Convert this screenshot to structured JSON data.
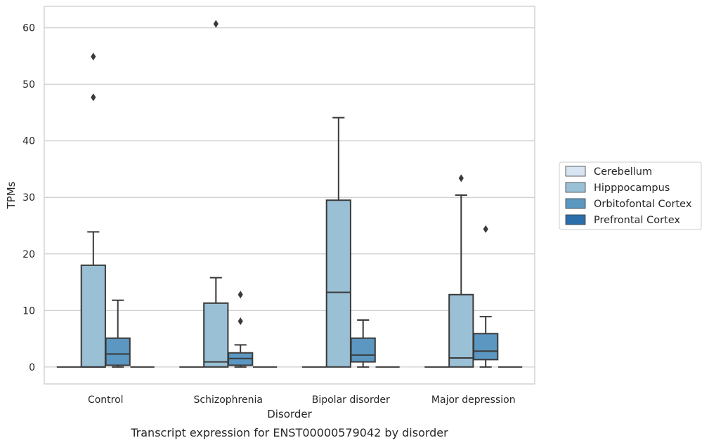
{
  "chart_data": {
    "type": "box",
    "xlabel": "Disorder",
    "ylabel": "TPMs",
    "caption": "Transcript expression for ENST00000579042 by disorder",
    "ylim": [
      -3,
      63.8
    ],
    "yticks": [
      0,
      10,
      20,
      30,
      40,
      50,
      60
    ],
    "grid": "horizontal",
    "legend_position": "right",
    "categories": [
      "Control",
      "Schizophrenia",
      "Bipolar disorder",
      "Major depression"
    ],
    "series": [
      {
        "name": "Cerebellum",
        "color": "#d6e5f1",
        "boxes": [
          {
            "min": 0,
            "q1": 0,
            "median": 0,
            "q3": 0,
            "max": 0,
            "outliers": []
          },
          {
            "min": 0,
            "q1": 0,
            "median": 0,
            "q3": 0,
            "max": 0,
            "outliers": []
          },
          {
            "min": 0,
            "q1": 0,
            "median": 0,
            "q3": 0,
            "max": 0,
            "outliers": []
          },
          {
            "min": 0,
            "q1": 0,
            "median": 0,
            "q3": 0,
            "max": 0,
            "outliers": []
          }
        ]
      },
      {
        "name": "Hipppocampus",
        "color": "#9ac0d6",
        "boxes": [
          {
            "min": 0,
            "q1": 0,
            "median": 0,
            "q3": 18,
            "max": 23.9,
            "outliers": [
              47.7,
              54.9
            ]
          },
          {
            "min": 0,
            "q1": 0,
            "median": 0.9,
            "q3": 11.3,
            "max": 15.8,
            "outliers": [
              60.7
            ]
          },
          {
            "min": 0,
            "q1": 0,
            "median": 13.2,
            "q3": 29.5,
            "max": 44.1,
            "outliers": []
          },
          {
            "min": 0,
            "q1": 0,
            "median": 1.6,
            "q3": 12.8,
            "max": 30.4,
            "outliers": [
              33.4
            ]
          }
        ]
      },
      {
        "name": "Orbitofontal Cortex",
        "color": "#5b97c1",
        "boxes": [
          {
            "min": 0,
            "q1": 0.3,
            "median": 2.3,
            "q3": 5.1,
            "max": 11.8,
            "outliers": []
          },
          {
            "min": 0,
            "q1": 0.3,
            "median": 1.5,
            "q3": 2.5,
            "max": 3.9,
            "outliers": [
              8.1,
              12.8
            ]
          },
          {
            "min": 0,
            "q1": 0.9,
            "median": 2.1,
            "q3": 5.1,
            "max": 8.3,
            "outliers": []
          },
          {
            "min": 0,
            "q1": 1.3,
            "median": 2.8,
            "q3": 5.9,
            "max": 8.9,
            "outliers": [
              24.4
            ]
          }
        ]
      },
      {
        "name": "Prefrontal Cortex",
        "color": "#2c6ea9",
        "boxes": [
          {
            "min": 0,
            "q1": 0,
            "median": 0,
            "q3": 0,
            "max": 0,
            "outliers": []
          },
          {
            "min": 0,
            "q1": 0,
            "median": 0,
            "q3": 0,
            "max": 0,
            "outliers": []
          },
          {
            "min": 0,
            "q1": 0,
            "median": 0,
            "q3": 0,
            "max": 0,
            "outliers": []
          },
          {
            "min": 0,
            "q1": 0,
            "median": 0,
            "q3": 0,
            "max": 0,
            "outliers": []
          }
        ]
      }
    ]
  }
}
